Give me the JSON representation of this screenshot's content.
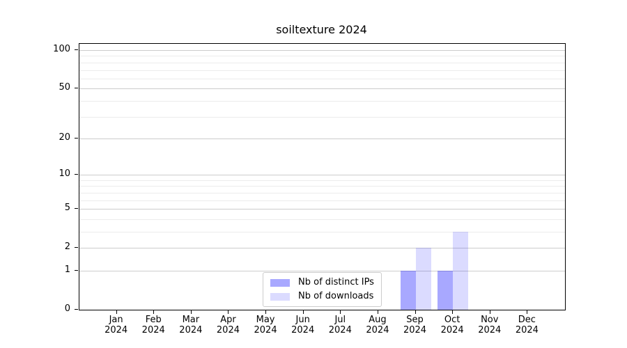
{
  "chart_data": {
    "type": "bar",
    "title": "soiltexture 2024",
    "months": [
      "Jan",
      "Feb",
      "Mar",
      "Apr",
      "May",
      "Jun",
      "Jul",
      "Aug",
      "Sep",
      "Oct",
      "Nov",
      "Dec"
    ],
    "year": "2024",
    "series": [
      {
        "name": "Nb of distinct IPs",
        "color": "rgba(0,0,255,0.34)",
        "values": [
          0,
          0,
          0,
          0,
          0,
          0,
          0,
          0,
          1,
          1,
          0,
          0
        ]
      },
      {
        "name": "Nb of downloads",
        "color": "rgba(0,0,255,0.14)",
        "values": [
          0,
          0,
          0,
          0,
          0,
          0,
          0,
          0,
          2,
          3,
          0,
          0
        ]
      }
    ],
    "y_axis": {
      "scale": "log1p",
      "ticks": [
        0,
        1,
        2,
        5,
        10,
        20,
        50,
        100
      ],
      "minor_gridlines": [
        3,
        4,
        6,
        7,
        8,
        9,
        30,
        40,
        60,
        70,
        80,
        90
      ],
      "max": 112
    },
    "x_axis": {
      "tick_count": 12
    },
    "legend_position": "bottom-center",
    "grid": "horizontal",
    "colors": {
      "bar_distinct_ips_hex": "#aaaaff",
      "bar_downloads_hex": "#dcdcff",
      "major_grid": "#cccccc",
      "minor_grid": "#ececec",
      "spine": "#000000",
      "background": "#ffffff"
    }
  }
}
